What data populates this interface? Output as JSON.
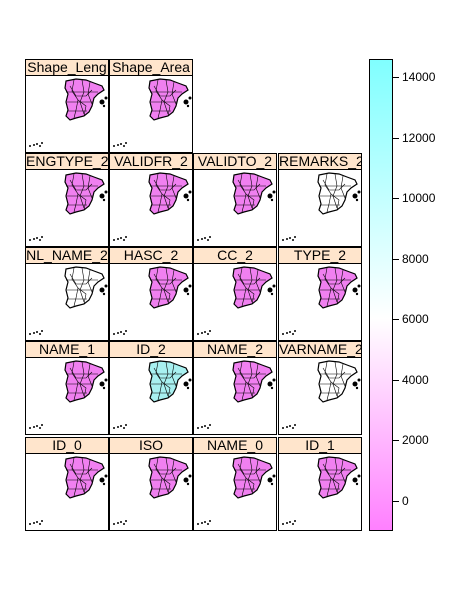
{
  "panels": [
    {
      "label": "Shape_Leng",
      "fill": "#f080f0"
    },
    {
      "label": "Shape_Area",
      "fill": "#f080f0"
    },
    {
      "label": "ENGTYPE_2",
      "fill": "#f080f0"
    },
    {
      "label": "VALIDFR_2",
      "fill": "#f080f0"
    },
    {
      "label": "VALIDTO_2",
      "fill": "#f080f0"
    },
    {
      "label": "REMARKS_2",
      "fill": "#ffffff"
    },
    {
      "label": "NL_NAME_2",
      "fill": "#ffffff"
    },
    {
      "label": "HASC_2",
      "fill": "#f080f0"
    },
    {
      "label": "CC_2",
      "fill": "#f080f0"
    },
    {
      "label": "TYPE_2",
      "fill": "#f080f0"
    },
    {
      "label": "NAME_1",
      "fill": "#f080f0"
    },
    {
      "label": "ID_2",
      "fill": "#a8f0f0"
    },
    {
      "label": "NAME_2",
      "fill": "#f080f0"
    },
    {
      "label": "VARNAME_2",
      "fill": "#ffffff"
    },
    {
      "label": "ID_0",
      "fill": "#f080f0"
    },
    {
      "label": "ISO",
      "fill": "#f080f0"
    },
    {
      "label": "NAME_0",
      "fill": "#f080f0"
    },
    {
      "label": "ID_1",
      "fill": "#f080f0"
    }
  ],
  "colorkey": {
    "range": [
      -1000,
      14600
    ],
    "ticks": [
      "0",
      "2000",
      "4000",
      "6000",
      "8000",
      "10000",
      "12000",
      "14000"
    ],
    "colors": [
      "#ff80ff",
      "#ffffff",
      "#80ffff"
    ]
  }
}
